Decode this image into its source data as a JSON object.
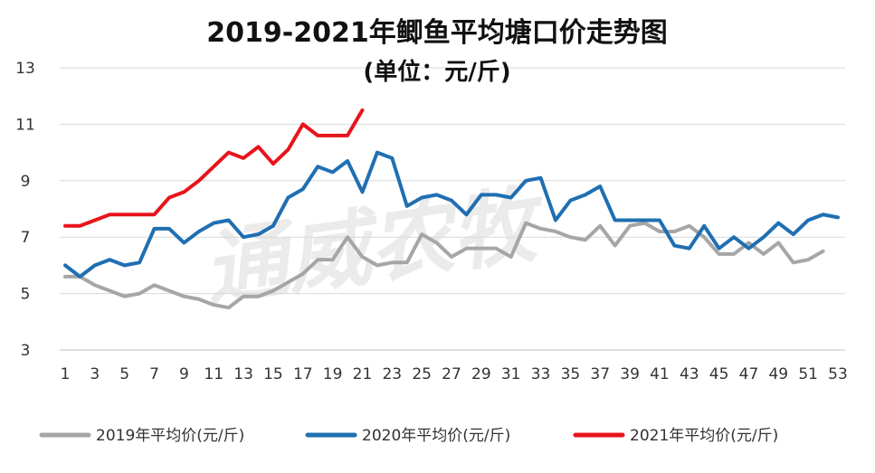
{
  "chart_data": {
    "type": "line",
    "title": "2019-2021年鲫鱼平均塘口价走势图",
    "subtitle": "(单位：元/斤)",
    "watermark": "通威农牧",
    "xlabel": "",
    "ylabel": "",
    "ylim": [
      3,
      13
    ],
    "yticks": [
      3,
      5,
      7,
      9,
      11,
      13
    ],
    "xlim": [
      1,
      53
    ],
    "xticks": [
      1,
      3,
      5,
      7,
      9,
      11,
      13,
      15,
      17,
      19,
      21,
      23,
      25,
      27,
      29,
      31,
      33,
      35,
      37,
      39,
      41,
      43,
      45,
      47,
      49,
      51,
      53
    ],
    "grid": true,
    "legend_position": "bottom",
    "series": [
      {
        "name": "2019年平均价(元/斤)",
        "color": "#a6a6a6",
        "x": [
          1,
          2,
          3,
          4,
          5,
          6,
          7,
          8,
          9,
          10,
          11,
          12,
          13,
          14,
          15,
          16,
          17,
          18,
          19,
          20,
          21,
          22,
          23,
          24,
          25,
          26,
          27,
          28,
          29,
          30,
          31,
          32,
          33,
          34,
          35,
          36,
          37,
          38,
          39,
          40,
          41,
          42,
          43,
          44,
          45,
          46,
          47,
          48,
          49,
          50,
          51,
          52
        ],
        "values": [
          5.6,
          5.6,
          5.3,
          5.1,
          4.9,
          5.0,
          5.3,
          5.1,
          4.9,
          4.8,
          4.6,
          4.5,
          4.9,
          4.9,
          5.1,
          5.4,
          5.7,
          6.2,
          6.2,
          7.0,
          6.3,
          6.0,
          6.1,
          6.1,
          7.1,
          6.8,
          6.3,
          6.6,
          6.6,
          6.6,
          6.3,
          7.5,
          7.3,
          7.2,
          7.0,
          6.9,
          7.4,
          6.7,
          7.4,
          7.5,
          7.2,
          7.2,
          7.4,
          7.0,
          6.4,
          6.4,
          6.8,
          6.4,
          6.8,
          6.1,
          6.2,
          6.5
        ]
      },
      {
        "name": "2020年平均价(元/斤)",
        "color": "#1f6fb2",
        "x": [
          1,
          2,
          3,
          4,
          5,
          6,
          7,
          8,
          9,
          10,
          11,
          12,
          13,
          14,
          15,
          16,
          17,
          18,
          19,
          20,
          21,
          22,
          23,
          24,
          25,
          26,
          27,
          28,
          29,
          30,
          31,
          32,
          33,
          34,
          35,
          36,
          37,
          38,
          39,
          40,
          41,
          42,
          43,
          44,
          45,
          46,
          47,
          48,
          49,
          50,
          51,
          52,
          53
        ],
        "values": [
          6.0,
          5.6,
          6.0,
          6.2,
          6.0,
          6.1,
          7.3,
          7.3,
          6.8,
          7.2,
          7.5,
          7.6,
          7.0,
          7.1,
          7.4,
          8.4,
          8.7,
          9.5,
          9.3,
          9.7,
          8.6,
          10.0,
          9.8,
          8.1,
          8.4,
          8.5,
          8.3,
          7.8,
          8.5,
          8.5,
          8.4,
          9.0,
          9.1,
          7.6,
          8.3,
          8.5,
          8.8,
          7.6,
          7.6,
          7.6,
          7.6,
          6.7,
          6.6,
          7.4,
          6.6,
          7.0,
          6.6,
          7.0,
          7.5,
          7.1,
          7.6,
          7.8,
          7.7
        ]
      },
      {
        "name": "2021年平均价(元/斤)",
        "color": "#e8141b",
        "x": [
          1,
          2,
          3,
          4,
          5,
          6,
          7,
          8,
          9,
          10,
          11,
          12,
          13,
          14,
          15,
          16,
          17,
          18,
          19,
          20,
          21
        ],
        "values": [
          7.4,
          7.4,
          7.6,
          7.8,
          7.8,
          7.8,
          7.8,
          8.4,
          8.6,
          9.0,
          9.5,
          10.0,
          9.8,
          10.2,
          9.6,
          10.1,
          11.0,
          10.6,
          10.6,
          10.6,
          11.5
        ]
      }
    ]
  }
}
